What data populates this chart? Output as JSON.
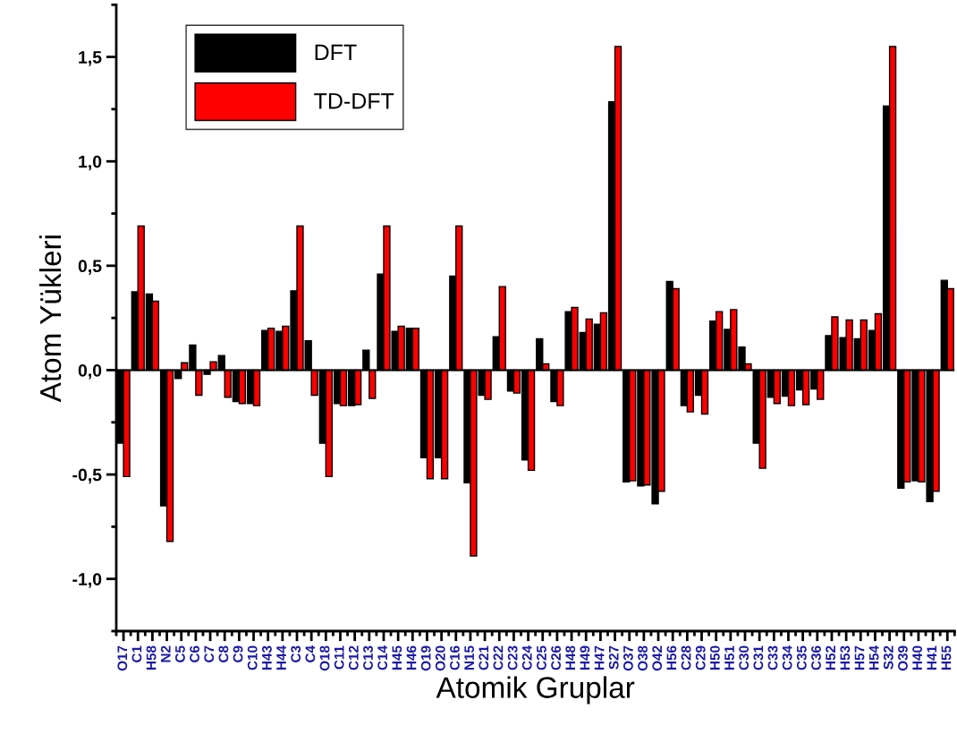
{
  "chart_data": {
    "type": "bar",
    "xlabel": "Atomik Gruplar",
    "ylabel": "Atom Yükleri",
    "categories": [
      "O17",
      "C1",
      "H58",
      "N2",
      "C5",
      "C6",
      "C7",
      "C8",
      "C9",
      "C10",
      "H43",
      "H44",
      "C3",
      "C4",
      "O18",
      "C11",
      "C12",
      "C13",
      "C14",
      "H45",
      "H46",
      "O19",
      "O20",
      "C16",
      "N15",
      "C21",
      "C22",
      "C23",
      "C24",
      "C25",
      "C26",
      "H48",
      "H49",
      "H47",
      "S27",
      "O37",
      "O38",
      "O42",
      "H56",
      "C28",
      "C29",
      "H50",
      "H51",
      "C30",
      "C31",
      "C33",
      "C34",
      "C35",
      "C36",
      "H52",
      "H53",
      "H57",
      "H54",
      "S32",
      "O39",
      "H40",
      "H41",
      "H55"
    ],
    "series": [
      {
        "name": "DFT",
        "color": "#000000",
        "values": [
          -0.35,
          0.375,
          0.365,
          -0.65,
          -0.04,
          0.12,
          -0.02,
          0.07,
          -0.15,
          -0.16,
          0.19,
          0.185,
          0.38,
          0.14,
          -0.35,
          -0.16,
          -0.17,
          0.095,
          0.46,
          0.185,
          0.2,
          -0.42,
          -0.42,
          0.45,
          -0.54,
          -0.12,
          0.16,
          -0.1,
          -0.43,
          0.15,
          -0.15,
          0.28,
          0.18,
          0.22,
          1.285,
          -0.535,
          -0.555,
          -0.64,
          0.425,
          -0.17,
          -0.12,
          0.235,
          0.195,
          0.11,
          -0.35,
          -0.13,
          -0.125,
          -0.095,
          -0.09,
          0.165,
          0.155,
          0.15,
          0.19,
          1.265,
          -0.565,
          -0.53,
          -0.63,
          0.43
        ]
      },
      {
        "name": "TD-DFT",
        "color": "#ff0000",
        "values": [
          -0.51,
          0.69,
          0.33,
          -0.82,
          0.035,
          -0.12,
          0.04,
          -0.13,
          -0.16,
          -0.17,
          0.2,
          0.21,
          0.69,
          -0.12,
          -0.51,
          -0.17,
          -0.165,
          -0.135,
          0.69,
          0.21,
          0.2,
          -0.52,
          -0.52,
          0.69,
          -0.89,
          -0.14,
          0.4,
          -0.11,
          -0.48,
          0.03,
          -0.17,
          0.3,
          0.245,
          0.275,
          1.55,
          -0.53,
          -0.55,
          -0.58,
          0.39,
          -0.2,
          -0.21,
          0.28,
          0.29,
          0.03,
          -0.47,
          -0.16,
          -0.17,
          -0.165,
          -0.14,
          0.255,
          0.24,
          0.24,
          0.27,
          1.55,
          -0.535,
          -0.535,
          -0.58,
          0.39
        ]
      }
    ],
    "ylim": [
      -1.25,
      1.75
    ],
    "yticks": [
      {
        "value": -1.0,
        "label": "-1,0"
      },
      {
        "value": -0.5,
        "label": "-0,5"
      },
      {
        "value": 0.0,
        "label": "0,0"
      },
      {
        "value": 0.5,
        "label": "0,5"
      },
      {
        "value": 1.0,
        "label": "1,0"
      },
      {
        "value": 1.5,
        "label": "1,5"
      }
    ],
    "ref_lines": [
      {
        "axis": "y",
        "value": 0,
        "color": "#000000"
      }
    ],
    "legend": "top left"
  }
}
